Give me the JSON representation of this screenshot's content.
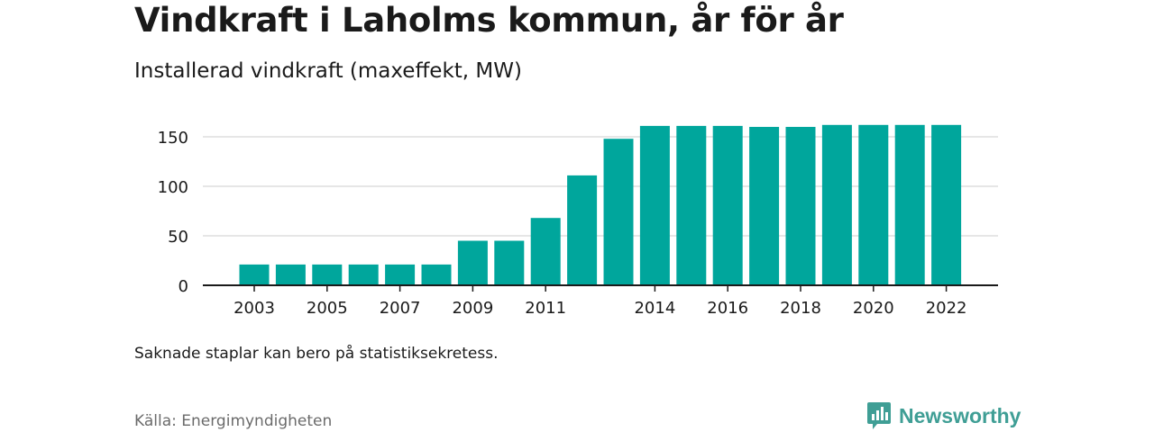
{
  "title": "Vindkraft i Laholms kommun, år för år",
  "subtitle": "Installerad vindkraft (maxeffekt, MW)",
  "note": "Saknade staplar kan bero på statistiksekretess.",
  "source": "Källa: Energimyndigheten",
  "brand": {
    "name": "Newsworthy",
    "icon": "newsworthy-logo-icon",
    "color": "#3f9e95"
  },
  "chart_data": {
    "type": "bar",
    "title": "Installerad vindkraft (maxeffekt, MW)",
    "xlabel": "",
    "ylabel": "",
    "categories": [
      2003,
      2004,
      2005,
      2006,
      2007,
      2008,
      2009,
      2010,
      2011,
      2012,
      2013,
      2014,
      2015,
      2016,
      2017,
      2018,
      2019,
      2020,
      2021,
      2022
    ],
    "values": [
      21,
      21,
      21,
      21,
      21,
      21,
      45,
      45,
      68,
      111,
      148,
      161,
      161,
      161,
      160,
      160,
      162,
      162,
      162,
      162
    ],
    "xtick_labels": [
      "2003",
      "",
      "2005",
      "",
      "2007",
      "",
      "2009",
      "",
      "2011",
      "",
      "",
      "2014",
      "",
      "2016",
      "",
      "2018",
      "",
      "2020",
      "",
      "2022"
    ],
    "yticks": [
      0,
      50,
      100,
      150
    ],
    "ylim": [
      0,
      170
    ],
    "grid": true,
    "bar_color": "#00a69c"
  }
}
